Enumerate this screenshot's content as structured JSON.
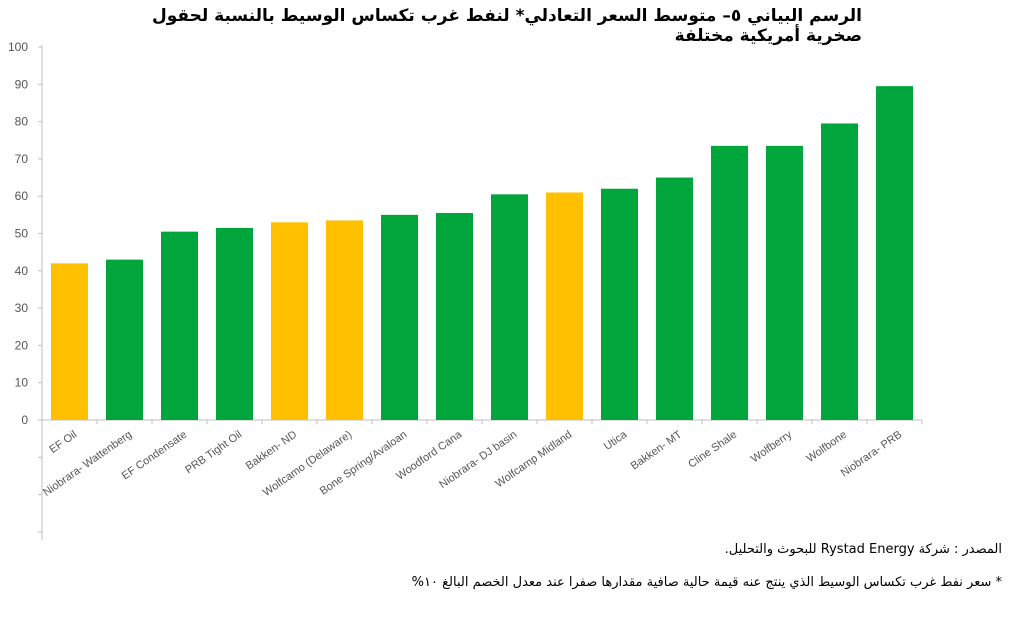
{
  "title": "الرسم البياني ٥– متوسط السعر التعادلي* لنفط غرب تكساس الوسيط بالنسبة لحقول صخرية أمريكية مختلفة",
  "source_note": "المصدر : شركة Rystad Energy للبحوث والتحليل.",
  "footnote": "* سعر نفط غرب تكساس الوسيط الذي ينتج عنه قيمة حالية صافية مقدارها صفرا عند معدل الخصم البالغ ١٠%",
  "colors": {
    "green": "#00A63C",
    "yellow": "#FFC000",
    "axis": "#BFBFBF",
    "text": "#555555"
  },
  "chart_data": {
    "type": "bar",
    "title": "الرسم البياني ٥– متوسط السعر التعادلي* لنفط غرب تكساس الوسيط بالنسبة لحقول صخرية أمريكية مختلفة",
    "xlabel": "",
    "ylabel": "",
    "ylim": [
      0,
      100
    ],
    "yticks": [
      "100",
      "90",
      "80",
      "70",
      "60",
      "50",
      "40",
      "30",
      "20",
      "10",
      "0"
    ],
    "grid": false,
    "categories": [
      "EF Oil",
      "Niobrara- Wattenberg",
      "EF Condensate",
      "PRB Tight Oil",
      "Bakken- ND",
      "Wolfcamo (Delaware)",
      "Bone Spring/Avaloan",
      "Woodford Cana",
      "Niobrara- DJ basin",
      "Wolfcamp Midland",
      "Utica",
      "Bakken- MT",
      "Cline Shale",
      "Wolfberry",
      "Wolfbone",
      "Niobrara- PRB"
    ],
    "values": [
      42,
      43,
      50.5,
      51.5,
      53,
      53.5,
      55,
      55.5,
      60.5,
      61,
      62,
      65,
      73.5,
      73.5,
      79.5,
      89.5
    ],
    "bar_colors": [
      "yellow",
      "green",
      "green",
      "green",
      "yellow",
      "yellow",
      "green",
      "green",
      "green",
      "yellow",
      "green",
      "green",
      "green",
      "green",
      "green",
      "green"
    ]
  }
}
